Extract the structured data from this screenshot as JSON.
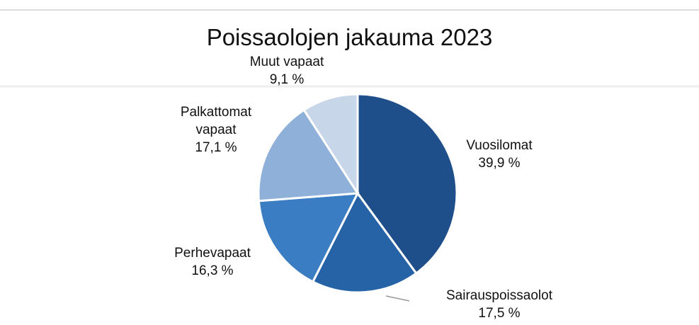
{
  "chart_data": {
    "type": "pie",
    "title": "Poissaolojen jakauma 2023",
    "categories": [
      "Vuosilomat",
      "Sairauspoissaolot",
      "Perhevapaat",
      "Palkattomat vapaat",
      "Muut vapaat"
    ],
    "values": [
      39.9,
      17.5,
      16.3,
      17.1,
      9.1
    ],
    "value_labels": [
      "39,9 %",
      "17,5 %",
      "16,3 %",
      "17,1 %",
      "9,1 %"
    ],
    "colors": [
      "#1f4f8a",
      "#2563a6",
      "#3a7dc2",
      "#8fb0d8",
      "#c8d6ea"
    ]
  }
}
